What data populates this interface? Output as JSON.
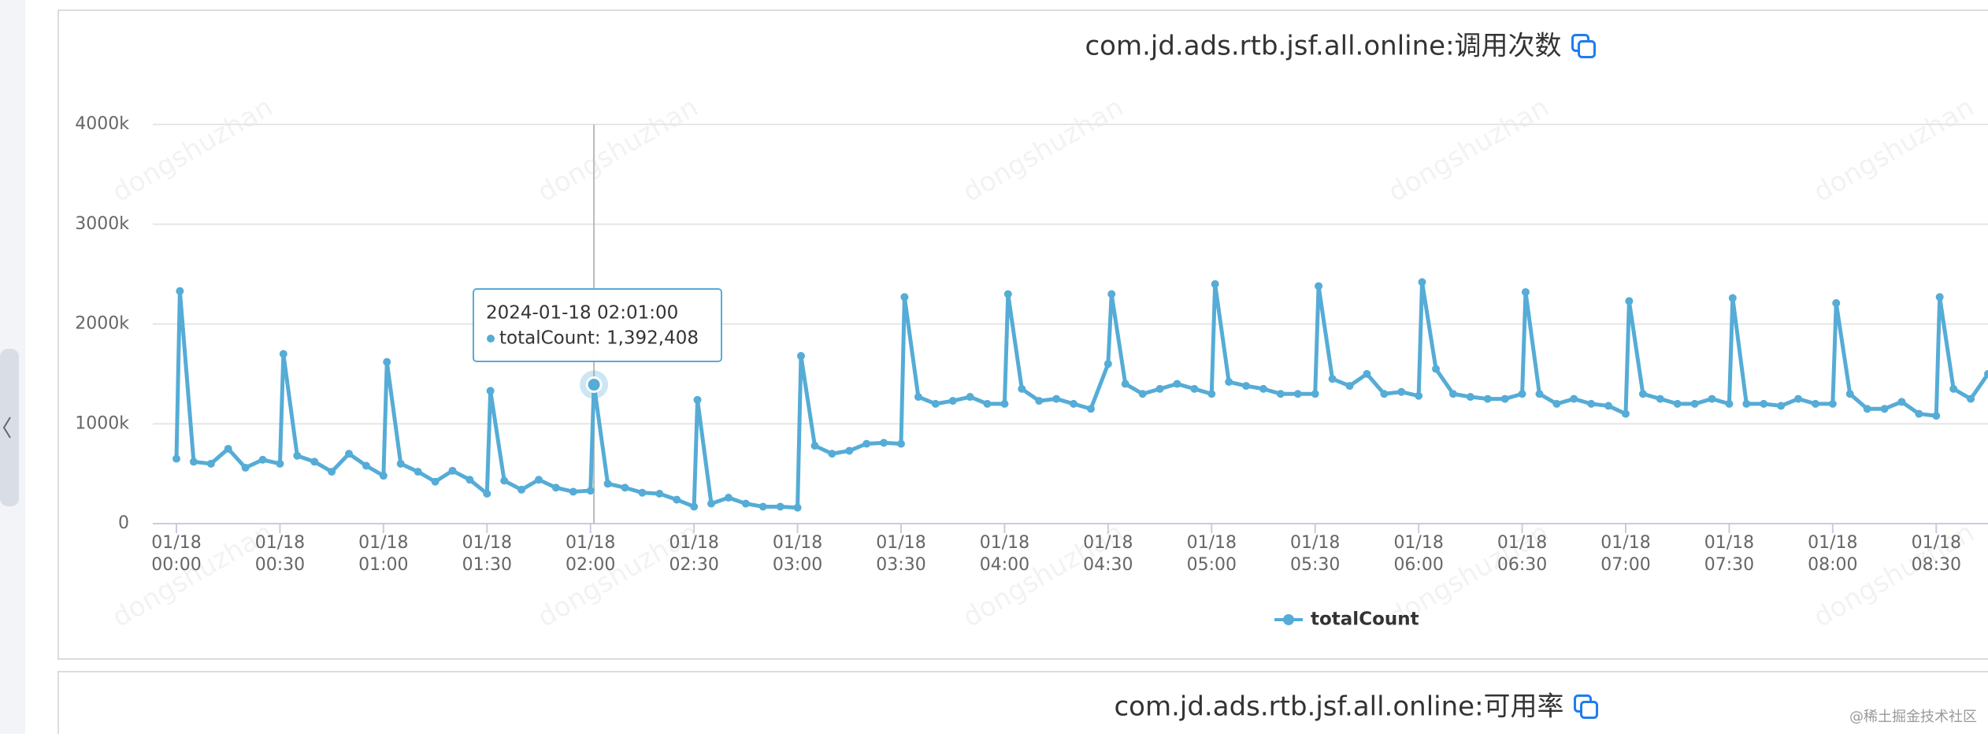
{
  "chart_data": {
    "type": "line",
    "title": "com.jd.ads.rtb.jsf.all.online:调用次数",
    "x": [
      "01/18 00:00",
      "01/18 00:01",
      "01/18 00:05",
      "01/18 00:10",
      "01/18 00:15",
      "01/18 00:20",
      "01/18 00:25",
      "01/18 00:30",
      "01/18 00:31",
      "01/18 00:35",
      "01/18 00:40",
      "01/18 00:45",
      "01/18 00:50",
      "01/18 00:55",
      "01/18 01:00",
      "01/18 01:01",
      "01/18 01:05",
      "01/18 01:10",
      "01/18 01:15",
      "01/18 01:20",
      "01/18 01:25",
      "01/18 01:30",
      "01/18 01:31",
      "01/18 01:35",
      "01/18 01:40",
      "01/18 01:45",
      "01/18 01:50",
      "01/18 01:55",
      "01/18 02:00",
      "01/18 02:01",
      "01/18 02:05",
      "01/18 02:10",
      "01/18 02:15",
      "01/18 02:20",
      "01/18 02:25",
      "01/18 02:30",
      "01/18 02:31",
      "01/18 02:35",
      "01/18 02:40",
      "01/18 02:45",
      "01/18 02:50",
      "01/18 02:55",
      "01/18 03:00",
      "01/18 03:01",
      "01/18 03:05",
      "01/18 03:10",
      "01/18 03:15",
      "01/18 03:20",
      "01/18 03:25",
      "01/18 03:30",
      "01/18 03:31",
      "01/18 03:35",
      "01/18 03:40",
      "01/18 03:45",
      "01/18 03:50",
      "01/18 03:55",
      "01/18 04:00",
      "01/18 04:01",
      "01/18 04:05",
      "01/18 04:10",
      "01/18 04:15",
      "01/18 04:20",
      "01/18 04:25",
      "01/18 04:30",
      "01/18 04:31",
      "01/18 04:35",
      "01/18 04:40",
      "01/18 04:45",
      "01/18 04:50",
      "01/18 04:55",
      "01/18 05:00",
      "01/18 05:01",
      "01/18 05:05",
      "01/18 05:10",
      "01/18 05:15",
      "01/18 05:20",
      "01/18 05:25",
      "01/18 05:30",
      "01/18 05:31",
      "01/18 05:35",
      "01/18 05:40",
      "01/18 05:45",
      "01/18 05:50",
      "01/18 05:55",
      "01/18 06:00",
      "01/18 06:01",
      "01/18 06:05",
      "01/18 06:10",
      "01/18 06:15",
      "01/18 06:20",
      "01/18 06:25",
      "01/18 06:30",
      "01/18 06:31",
      "01/18 06:35",
      "01/18 06:40",
      "01/18 06:45",
      "01/18 06:50",
      "01/18 06:55",
      "01/18 07:00",
      "01/18 07:01",
      "01/18 07:05",
      "01/18 07:10",
      "01/18 07:15",
      "01/18 07:20",
      "01/18 07:25",
      "01/18 07:30",
      "01/18 07:31",
      "01/18 07:35",
      "01/18 07:40",
      "01/18 07:45",
      "01/18 07:50",
      "01/18 07:55",
      "01/18 08:00",
      "01/18 08:01",
      "01/18 08:05",
      "01/18 08:10",
      "01/18 08:15",
      "01/18 08:20",
      "01/18 08:25",
      "01/18 08:30",
      "01/18 08:31",
      "01/18 08:35",
      "01/18 08:40",
      "01/18 08:45"
    ],
    "series": [
      {
        "name": "totalCount",
        "color": "#55acd6",
        "values": [
          650,
          2330,
          620,
          600,
          750,
          560,
          640,
          600,
          1700,
          680,
          620,
          520,
          700,
          580,
          480,
          1620,
          600,
          520,
          420,
          530,
          440,
          300,
          1330,
          430,
          340,
          440,
          360,
          320,
          330,
          1392.408,
          400,
          360,
          310,
          300,
          240,
          170,
          1240,
          200,
          260,
          200,
          170,
          170,
          160,
          1680,
          780,
          700,
          730,
          800,
          810,
          800,
          2270,
          1270,
          1200,
          1230,
          1270,
          1200,
          1200,
          2300,
          1350,
          1230,
          1250,
          1200,
          1150,
          1600,
          2300,
          1400,
          1300,
          1350,
          1400,
          1350,
          1300,
          2400,
          1420,
          1380,
          1350,
          1300,
          1300,
          1300,
          2380,
          1450,
          1380,
          1500,
          1300,
          1320,
          1280,
          2420,
          1550,
          1300,
          1270,
          1250,
          1250,
          1300,
          2320,
          1300,
          1200,
          1250,
          1200,
          1180,
          1100,
          2230,
          1300,
          1250,
          1200,
          1200,
          1250,
          1200,
          2260,
          1200,
          1200,
          1180,
          1250,
          1200,
          1200,
          2210,
          1300,
          1150,
          1150,
          1220,
          1100,
          1080,
          2270,
          1350,
          1250,
          1500
        ]
      }
    ],
    "xlim": [
      "01/18 00:00",
      "01/18 08:45"
    ],
    "xticks": [
      {
        "value": "01/18 00:00",
        "label": [
          "01/18",
          "00:00"
        ]
      },
      {
        "value": "01/18 00:30",
        "label": [
          "01/18",
          "00:30"
        ]
      },
      {
        "value": "01/18 01:00",
        "label": [
          "01/18",
          "01:00"
        ]
      },
      {
        "value": "01/18 01:30",
        "label": [
          "01/18",
          "01:30"
        ]
      },
      {
        "value": "01/18 02:00",
        "label": [
          "01/18",
          "02:00"
        ]
      },
      {
        "value": "01/18 02:30",
        "label": [
          "01/18",
          "02:30"
        ]
      },
      {
        "value": "01/18 03:00",
        "label": [
          "01/18",
          "03:00"
        ]
      },
      {
        "value": "01/18 03:30",
        "label": [
          "01/18",
          "03:30"
        ]
      },
      {
        "value": "01/18 04:00",
        "label": [
          "01/18",
          "04:00"
        ]
      },
      {
        "value": "01/18 04:30",
        "label": [
          "01/18",
          "04:30"
        ]
      },
      {
        "value": "01/18 05:00",
        "label": [
          "01/18",
          "05:00"
        ]
      },
      {
        "value": "01/18 05:30",
        "label": [
          "01/18",
          "05:30"
        ]
      },
      {
        "value": "01/18 06:00",
        "label": [
          "01/18",
          "06:00"
        ]
      },
      {
        "value": "01/18 06:30",
        "label": [
          "01/18",
          "06:30"
        ]
      },
      {
        "value": "01/18 07:00",
        "label": [
          "01/18",
          "07:00"
        ]
      },
      {
        "value": "01/18 07:30",
        "label": [
          "01/18",
          "07:30"
        ]
      },
      {
        "value": "01/18 08:00",
        "label": [
          "01/18",
          "08:00"
        ]
      },
      {
        "value": "01/18 08:30",
        "label": [
          "01/18",
          "08:30"
        ]
      }
    ],
    "ylim": [
      0,
      4000
    ],
    "yticks": [
      0,
      {
        "value": 1000,
        "label": "1000k"
      },
      {
        "value": 2000,
        "label": "2000k"
      },
      {
        "value": 3000,
        "label": "3000k"
      },
      {
        "value": 4000,
        "label": "4000k"
      }
    ],
    "grid": true,
    "legend": "bottom",
    "tooltip": {
      "title": "2024-01-18 02:01:00",
      "text": "totalCount: 1,392,408"
    }
  },
  "next_panel": {
    "title": "com.jd.ads.rtb.jsf.all.online:可用率"
  },
  "watermark": "dongshuzhan",
  "credit": "@稀土掘金技术社区"
}
